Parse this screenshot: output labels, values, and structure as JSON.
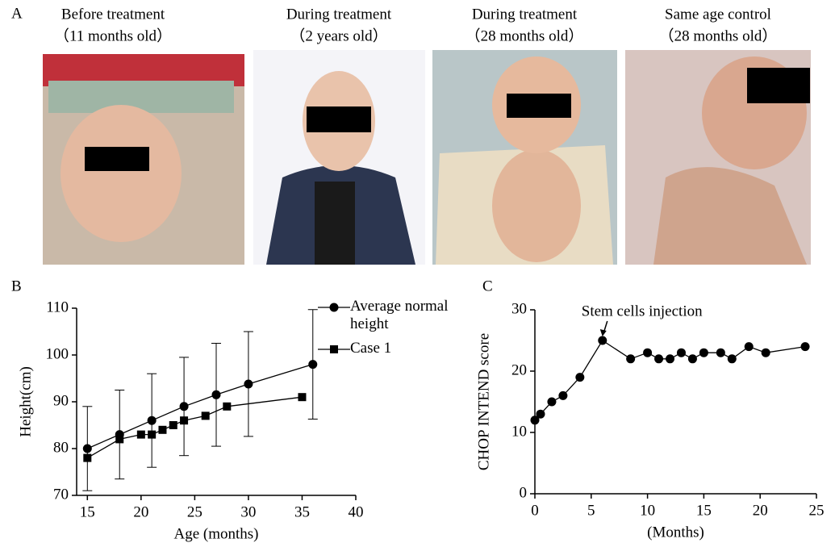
{
  "panels": {
    "label": "A",
    "photos": [
      {
        "caption": "Before treatment",
        "age": "（11 months old）"
      },
      {
        "caption": "During treatment",
        "age": "（2 years old）"
      },
      {
        "caption": "During treatment",
        "age": "（28 months old）"
      },
      {
        "caption": "Same age control",
        "age": "（28 months old）"
      }
    ]
  },
  "chart_data": [
    {
      "type": "line",
      "label": "B",
      "xlabel": "Age (months)",
      "ylabel": "Height(cm)",
      "xlim": [
        14,
        40
      ],
      "xticks": [
        15,
        20,
        25,
        30,
        35,
        40
      ],
      "ylim": [
        70,
        110
      ],
      "yticks": [
        70,
        80,
        90,
        100,
        110
      ],
      "legend": "upper right",
      "series": [
        {
          "name": "Average normal height",
          "color": "#000000",
          "marker": "circle",
          "x": [
            15,
            18,
            21,
            24,
            27,
            30,
            36
          ],
          "values": [
            80,
            83,
            86,
            89,
            91.5,
            93.8,
            98
          ],
          "errors": [
            9,
            9.5,
            10,
            10.5,
            11,
            11.2,
            11.7
          ]
        },
        {
          "name": "Case 1",
          "color": "#000000",
          "marker": "square",
          "x": [
            15,
            18,
            20,
            21,
            22,
            23,
            24,
            26,
            28,
            35
          ],
          "values": [
            78,
            82,
            83,
            83,
            84,
            85,
            86,
            87,
            89,
            91
          ]
        }
      ]
    },
    {
      "type": "line",
      "label": "C",
      "xlabel": "(Months)",
      "ylabel": "CHOP INTEND score",
      "xlim": [
        0,
        25
      ],
      "xticks": [
        0,
        5,
        10,
        15,
        20,
        25
      ],
      "ylim": [
        0,
        30
      ],
      "yticks": [
        0,
        10,
        20,
        30
      ],
      "annotation": {
        "text": "Stem cells injection",
        "x": 6,
        "y": 25
      },
      "series": [
        {
          "color": "#000000",
          "marker": "circle",
          "x": [
            0,
            0.5,
            1.5,
            2.5,
            4,
            6,
            8.5,
            10,
            11,
            12,
            13,
            14,
            15,
            16.5,
            17.5,
            19,
            20.5,
            24
          ],
          "values": [
            12,
            13,
            15,
            16,
            19,
            25,
            22,
            23,
            22,
            22,
            23,
            22,
            23,
            23,
            22,
            24,
            23,
            24
          ]
        }
      ]
    }
  ]
}
